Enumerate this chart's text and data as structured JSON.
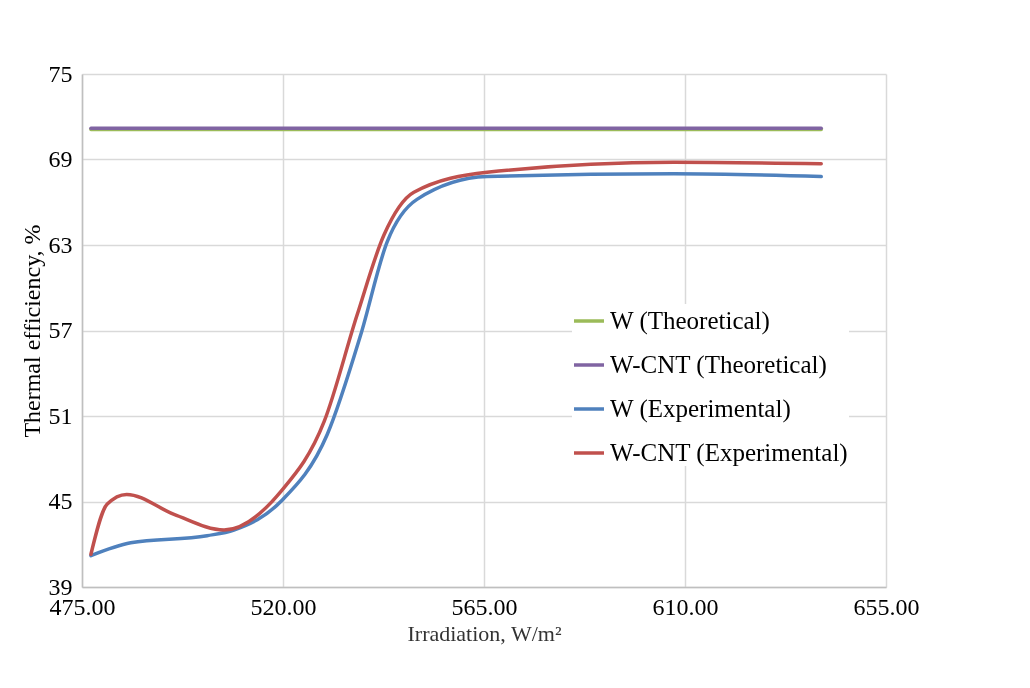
{
  "chart_data": {
    "type": "line",
    "xlabel": "Irradiation, W/m²",
    "ylabel": "Thermal efficiency, %",
    "xlim": [
      475,
      655
    ],
    "xticks": [
      {
        "value": 475,
        "label": "475.00"
      },
      {
        "value": 520,
        "label": "520.00"
      },
      {
        "value": 565,
        "label": "565.00"
      },
      {
        "value": 610,
        "label": "610.00"
      },
      {
        "value": 655,
        "label": "655.00"
      }
    ],
    "ylim": [
      39,
      75
    ],
    "yticks": [
      39,
      45,
      51,
      57,
      63,
      69,
      75
    ],
    "grid": true,
    "legend": "right",
    "line_style": "solid",
    "marker": "none",
    "series": [
      {
        "name": "W (Theoretical)",
        "color": "#9bbb59",
        "x": [
          477,
          640.5
        ],
        "values": [
          71.1,
          71.1
        ]
      },
      {
        "name": "W-CNT (Theoretical)",
        "color": "#8064a2",
        "x": [
          477,
          640.5
        ],
        "values": [
          71.2,
          71.2
        ]
      },
      {
        "name": "W (Experimental)",
        "color": "#4f81bd",
        "x": [
          477,
          485.9,
          503,
          509,
          519.5,
          529.9,
          537.4,
          543.3,
          550,
          565.7,
          607.5,
          640.5
        ],
        "values": [
          41.2,
          42.1,
          42.6,
          43,
          45,
          49.7,
          56.7,
          63.2,
          66.2,
          67.8,
          68,
          67.8
        ]
      },
      {
        "name": "W-CNT (Experimental)",
        "color": "#c0504d",
        "x": [
          477,
          480.6,
          485,
          495.6,
          506.8,
          519.5,
          529.2,
          536.6,
          542.6,
          549.3,
          565.7,
          607.5,
          640.5
        ],
        "values": [
          41.3,
          44.8,
          45.5,
          44.1,
          43,
          45.7,
          50.6,
          58.1,
          63.7,
          66.7,
          68.1,
          68.8,
          68.7
        ]
      }
    ]
  }
}
